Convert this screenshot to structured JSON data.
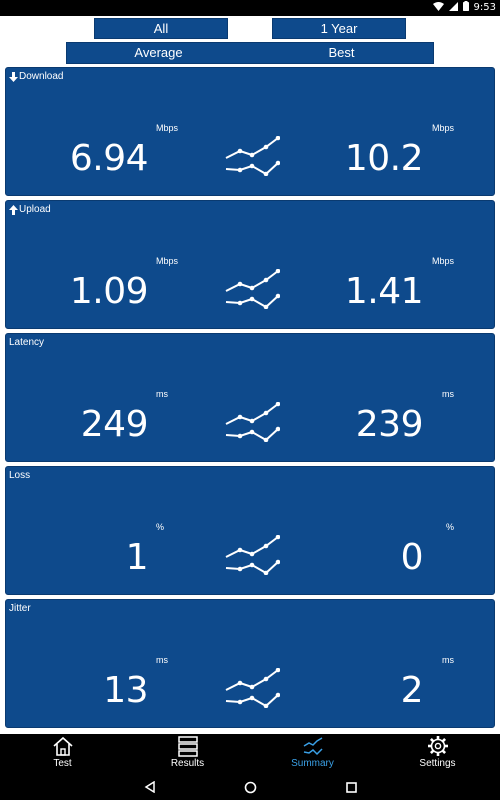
{
  "status_bar": {
    "time": "9:53",
    "icons": [
      "wifi-icon",
      "signal-icon",
      "battery-icon"
    ]
  },
  "filters": {
    "range": "All",
    "period": "1 Year",
    "left_stat": "Average",
    "right_stat": "Best"
  },
  "metrics": [
    {
      "title": "Download",
      "icon": "download-arrow-icon",
      "unit": "Mbps",
      "average": "6.94",
      "best": "10.2"
    },
    {
      "title": "Upload",
      "icon": "upload-arrow-icon",
      "unit": "Mbps",
      "average": "1.09",
      "best": "1.41"
    },
    {
      "title": "Latency",
      "unit": "ms",
      "average": "249",
      "best": "239"
    },
    {
      "title": "Loss",
      "unit": "%",
      "average": "1",
      "best": "0"
    },
    {
      "title": "Jitter",
      "unit": "ms",
      "average": "13",
      "best": "2"
    }
  ],
  "bottom_nav": [
    {
      "label": "Test",
      "icon": "home-icon",
      "active": false
    },
    {
      "label": "Results",
      "icon": "list-icon",
      "active": false
    },
    {
      "label": "Summary",
      "icon": "trend-icon",
      "active": true
    },
    {
      "label": "Settings",
      "icon": "gear-icon",
      "active": false
    }
  ],
  "system_nav": [
    "back-icon",
    "home-circle-icon",
    "recents-icon"
  ],
  "colors": {
    "card": "#0e4a8c",
    "active_tab": "#3aa0e6",
    "text": "#ffffff",
    "bars": "#000000"
  }
}
